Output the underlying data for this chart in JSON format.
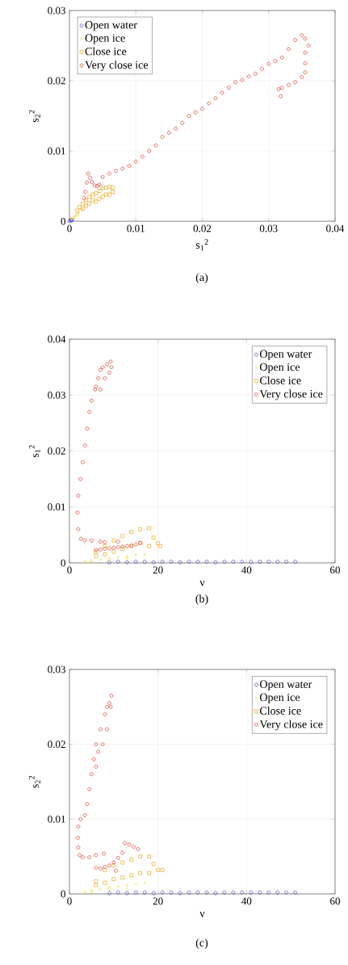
{
  "chart_data": [
    {
      "type": "scatter",
      "xlabel": "s$_{1}$$^{2}$",
      "ylabel": "s$_{2}$$^{2}$",
      "annotations": [
        "(a)"
      ],
      "xlim": [
        0,
        0.04
      ],
      "ylim": [
        0,
        0.03
      ],
      "xticks": [
        0,
        0.01,
        0.02,
        0.03,
        0.04
      ],
      "yticks": [
        0,
        0.01,
        0.02,
        0.03
      ],
      "grid": true,
      "legend": "top left",
      "series": [
        {
          "name": "Open water",
          "color": "#4040c0",
          "marker": "circle",
          "x": [
            0,
            0.0001,
            0.0002,
            0.0003,
            0.0004
          ],
          "values": [
            0,
            null,
            0.0001,
            0.0002,
            0.0002
          ]
        },
        {
          "name": "Open ice",
          "color": "#f2d82a",
          "marker": "cross",
          "x": [
            0.0003,
            0.0005,
            0.0007,
            0.0009,
            0.0011,
            0.0013,
            0.0015,
            0.0017,
            0.0019,
            0.0008,
            0.0012
          ],
          "values": [
            0.0003,
            0.0005,
            0.0007,
            0.0008,
            0.001,
            0.0012,
            null,
            null,
            0.0017,
            0.0005,
            0.0008
          ]
        },
        {
          "name": "Close ice",
          "color": "#e8a820",
          "marker": "square",
          "x": [
            0.0012,
            0.0015,
            0.002,
            0.002,
            0.0025,
            0.0025,
            0.003,
            0.003,
            0.0035,
            0.0035,
            0.004,
            0.004,
            0.0045,
            0.0045,
            0.005,
            0.005,
            0.0055,
            0.0055,
            0.006,
            0.006,
            0.0065,
            0.0065
          ],
          "values": [
            0.0015,
            0.002,
            0.0018,
            0.0025,
            0.0022,
            0.003,
            0.0025,
            0.0035,
            0.003,
            0.0038,
            0.0028,
            0.004,
            0.0032,
            0.0043,
            0.0035,
            0.0047,
            0.0038,
            0.0048,
            0.0038,
            0.0049,
            0.0042,
            0.0048
          ]
        },
        {
          "name": "Very close ice",
          "color": "#e03020",
          "marker": "circle",
          "x": [
            0.0022,
            0.0024,
            0.0026,
            0.0028,
            0.0031,
            0.0034,
            0.0038,
            0.0042,
            0.0045,
            0.005,
            0.006,
            0.007,
            0.008,
            0.009,
            0.01,
            0.011,
            0.012,
            0.013,
            0.014,
            0.015,
            0.016,
            0.017,
            0.018,
            0.019,
            0.02,
            0.021,
            0.022,
            0.023,
            0.024,
            0.025,
            0.026,
            0.027,
            0.028,
            0.029,
            0.03,
            0.031,
            0.032,
            0.033,
            0.034,
            0.035,
            0.0355,
            0.036,
            0.0355,
            0.0355,
            0.0355,
            0.035,
            0.034,
            0.033,
            0.032,
            0.0315,
            0.0318
          ],
          "values": [
            0.0033,
            0.0042,
            0.0055,
            0.0068,
            0.0062,
            0.0056,
            0.0051,
            0.005,
            0.0052,
            0.0063,
            0.0068,
            0.0072,
            0.0075,
            0.0079,
            0.0085,
            0.0092,
            0.01,
            0.0108,
            0.012,
            0.0126,
            0.0132,
            0.014,
            0.015,
            0.0155,
            0.016,
            0.0168,
            0.0175,
            0.0183,
            0.019,
            0.0198,
            0.0201,
            0.0206,
            0.021,
            0.0217,
            0.0224,
            0.0228,
            0.0233,
            0.0245,
            0.0258,
            0.0265,
            0.026,
            0.025,
            0.024,
            0.0225,
            0.0212,
            0.0205,
            0.0198,
            0.0194,
            0.019,
            0.0188,
            0.0178
          ]
        }
      ]
    },
    {
      "type": "scatter",
      "xlabel": "ν",
      "ylabel": "s$_{1}$$^{2}$",
      "annotations": [
        "(b)"
      ],
      "xlim": [
        0,
        60
      ],
      "ylim": [
        0,
        0.04
      ],
      "xticks": [
        0,
        20,
        40,
        60
      ],
      "yticks": [
        0,
        0.01,
        0.02,
        0.03,
        0.04
      ],
      "grid": true,
      "legend": "top right",
      "series": [
        {
          "name": "Open water",
          "color": "#4040c0",
          "marker": "circle",
          "x": [
            9,
            11,
            13,
            15,
            17,
            19,
            21,
            23,
            25,
            27,
            29,
            31,
            33,
            35,
            37,
            39,
            41,
            43,
            45,
            47,
            49,
            51
          ],
          "values": [
            0.0001,
            0.0002,
            0.0001,
            0.0002,
            0.0002,
            0.0001,
            0.0002,
            0.0002,
            0.0001,
            0.0002,
            0.0002,
            0.0002,
            0.0001,
            0.0002,
            0.0002,
            0.0002,
            0.0002,
            0.0002,
            0.0002,
            0.0002,
            0.0002,
            0.0002
          ]
        },
        {
          "name": "Open ice",
          "color": "#f2d82a",
          "marker": "cross",
          "x": [
            3.5,
            5,
            7,
            9,
            11,
            13,
            15,
            17,
            5,
            9,
            13
          ],
          "values": [
            0.0002,
            0.0004,
            0.0006,
            0.0008,
            0.001,
            0.0012,
            0.0014,
            0.0015,
            0.0001,
            0.0004,
            0.0008
          ]
        },
        {
          "name": "Close ice",
          "color": "#e8a820",
          "marker": "square",
          "x": [
            6,
            6,
            8,
            8,
            10,
            10,
            12,
            12,
            14,
            14,
            16,
            16,
            18,
            18,
            19,
            20,
            20.5
          ],
          "values": [
            0.0012,
            0.002,
            0.0015,
            0.003,
            0.002,
            0.004,
            0.0025,
            0.0048,
            0.003,
            0.0055,
            0.0035,
            0.006,
            0.003,
            0.0062,
            0.0045,
            0.0035,
            0.003
          ]
        },
        {
          "name": "Very close ice",
          "color": "#e03020",
          "marker": "circle",
          "x": [
            6,
            7,
            8,
            9,
            10,
            11,
            12,
            13,
            14,
            15,
            16,
            8,
            11,
            7,
            5,
            3.5,
            2.6,
            2,
            1.8,
            2,
            2.5,
            3,
            3.5,
            4,
            4.5,
            5,
            5.8,
            6.5,
            7.5,
            8.5,
            9.3,
            9.5,
            9,
            8,
            7,
            6,
            7
          ],
          "values": [
            0.0023,
            0.0024,
            0.0025,
            0.0026,
            0.0027,
            0.0028,
            0.0029,
            0.003,
            0.0031,
            0.0033,
            0.0036,
            0.0037,
            0.0038,
            0.0038,
            0.004,
            0.004,
            0.0043,
            0.006,
            0.009,
            0.012,
            0.015,
            0.018,
            0.021,
            0.024,
            0.027,
            0.029,
            0.031,
            0.033,
            0.035,
            0.0355,
            0.036,
            0.035,
            0.034,
            0.033,
            0.031,
            0.0315,
            0.0345
          ]
        }
      ]
    },
    {
      "type": "scatter",
      "xlabel": "ν",
      "ylabel": "s$_{2}$$^{2}$",
      "annotations": [
        "(c)"
      ],
      "xlim": [
        0,
        60
      ],
      "ylim": [
        0,
        0.03
      ],
      "xticks": [
        0,
        20,
        40,
        60
      ],
      "yticks": [
        0,
        0.01,
        0.02,
        0.03
      ],
      "grid": true,
      "legend": "top right",
      "series": [
        {
          "name": "Open water",
          "color": "#4040c0",
          "marker": "circle",
          "x": [
            9,
            11,
            13,
            15,
            17,
            19,
            21,
            23,
            25,
            27,
            29,
            31,
            33,
            35,
            37,
            39,
            41,
            43,
            45,
            47,
            49,
            51
          ],
          "values": [
            0.0001,
            0.0002,
            0.0001,
            0.0002,
            0.0002,
            0.0001,
            0.0002,
            0.0002,
            0.0001,
            0.0002,
            0.0002,
            0.0002,
            0.0001,
            0.0002,
            0.0002,
            0.0002,
            0.0002,
            0.0002,
            0.0002,
            0.0002,
            0.0002,
            0.0002
          ]
        },
        {
          "name": "Open ice",
          "color": "#f2d82a",
          "marker": "cross",
          "x": [
            3.5,
            5,
            7,
            9,
            11,
            13,
            15,
            17,
            5,
            9,
            13
          ],
          "values": [
            0.0002,
            0.0005,
            0.0007,
            0.0009,
            0.001,
            0.0012,
            0.0013,
            0.0015,
            0.0002,
            0.0005,
            0.0008
          ]
        },
        {
          "name": "Close ice",
          "color": "#e8a820",
          "marker": "square",
          "x": [
            6,
            6,
            8,
            8,
            10,
            10,
            12,
            12,
            14,
            14,
            16,
            16,
            18,
            18,
            19,
            20,
            21
          ],
          "values": [
            0.0012,
            0.0017,
            0.0015,
            0.0032,
            0.002,
            0.0038,
            0.0022,
            0.0042,
            0.0025,
            0.0046,
            0.0028,
            0.005,
            0.0028,
            0.005,
            0.004,
            0.0032,
            0.0032
          ]
        },
        {
          "name": "Very close ice",
          "color": "#e03020",
          "marker": "circle",
          "x": [
            9.5,
            9,
            8.5,
            8,
            7,
            6,
            5.5,
            5,
            4.5,
            4,
            3.5,
            2.5,
            2,
            1.9,
            2,
            2.3,
            3,
            4.5,
            6,
            7.8,
            9.3,
            8.5,
            7.5,
            6.5,
            6,
            6,
            7,
            8,
            9,
            10,
            11,
            12,
            12.5,
            13.5,
            14.5,
            15.5,
            10.5
          ],
          "values": [
            0.0265,
            0.0255,
            0.025,
            0.024,
            0.022,
            0.02,
            0.018,
            0.016,
            0.014,
            0.012,
            0.0105,
            0.01,
            0.009,
            0.0075,
            0.0062,
            0.0052,
            0.0049,
            0.0049,
            0.0052,
            0.0054,
            0.025,
            0.022,
            0.02,
            0.019,
            0.017,
            0.0035,
            0.0034,
            0.0036,
            0.0038,
            0.0042,
            0.0048,
            0.0055,
            0.0068,
            0.0066,
            0.0063,
            0.006,
            0.0031
          ]
        }
      ]
    }
  ]
}
